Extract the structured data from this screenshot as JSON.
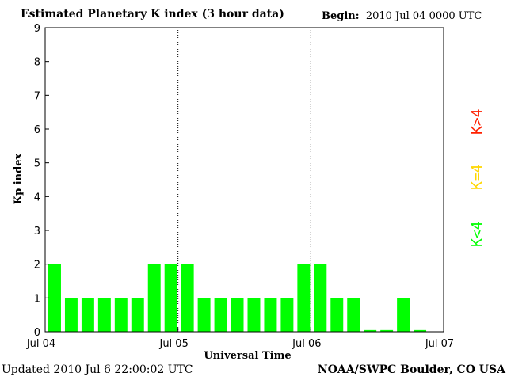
{
  "header": {
    "title": "Estimated Planetary K index (3 hour data)",
    "begin_label": "Begin:",
    "begin_value": "2010 Jul 04 0000 UTC"
  },
  "footer": {
    "updated_label": "Updated",
    "updated_value": "2010 Jul  6 22:00:02 UTC",
    "credit": "NOAA/SWPC Boulder, CO USA"
  },
  "legend": {
    "items": [
      {
        "label": "K<4",
        "color": "#00ff00"
      },
      {
        "label": "K=4",
        "color": "#ffd700"
      },
      {
        "label": "K>4",
        "color": "#ff2000"
      }
    ]
  },
  "chart_data": {
    "type": "bar",
    "title": "Estimated Planetary K index (3 hour data)",
    "xlabel": "Universal Time",
    "ylabel": "Kp index",
    "ylim": [
      0,
      9
    ],
    "yticks": [
      "0",
      "1",
      "2",
      "3",
      "4",
      "5",
      "6",
      "7",
      "8",
      "9"
    ],
    "xticks": [
      "Jul 04",
      "Jul 05",
      "Jul 06",
      "Jul 07"
    ],
    "values": [
      2,
      1,
      1,
      1,
      1,
      1,
      2,
      2,
      2,
      1,
      1,
      1,
      1,
      1,
      1,
      2,
      2,
      1,
      1,
      0.05,
      0.05,
      1,
      0.05
    ],
    "bar_color": "#00ff00",
    "day_separators": [
      "Jul 05",
      "Jul 06"
    ]
  }
}
